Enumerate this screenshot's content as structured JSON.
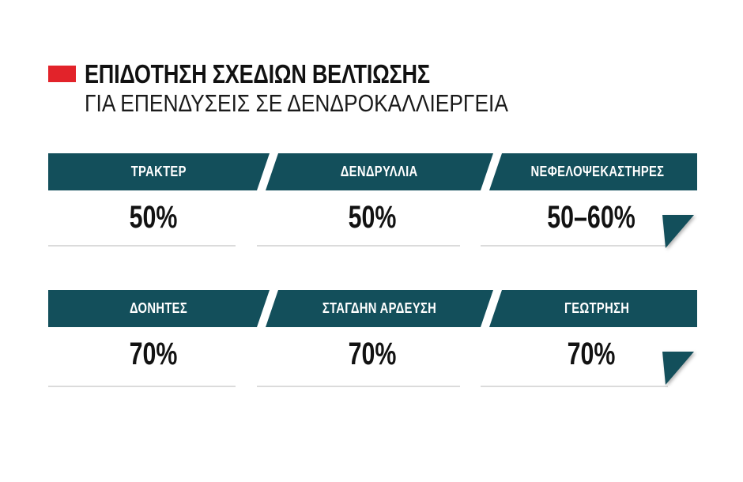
{
  "header": {
    "title": "ΕΠΙΔΟΤΗΣΗ ΣΧΕΔΙΩΝ ΒΕΛΤΙΩΣΗΣ",
    "subtitle": "ΓΙΑ ΕΠΕΝΔΥΣΕΙΣ ΣΕ ΔΕΝΔΡΟΚΑΛΛΙΕΡΓΕΙΑ"
  },
  "rows": [
    {
      "cells": [
        {
          "label": "ΤΡΑΚΤΕΡ",
          "value": "50%"
        },
        {
          "label": "ΔΕΝΔΡΥΛΛΙΑ",
          "value": "50%"
        },
        {
          "label": "ΝΕΦΕΛΟΨΕΚΑΣΤΗΡΕΣ",
          "value": "50–60%"
        }
      ]
    },
    {
      "cells": [
        {
          "label": "ΔΟΝΗΤΕΣ",
          "value": "70%"
        },
        {
          "label": "ΣΤΑΓΔΗΝ ΑΡΔΕΥΣΗ",
          "value": "70%"
        },
        {
          "label": "ΓΕΩΤΡΗΣΗ",
          "value": "70%"
        }
      ]
    }
  ],
  "colors": {
    "teal": "#134f5b",
    "red": "#e2232a",
    "underline": "#dbdbdb",
    "text": "#121212"
  },
  "chart_data": {
    "type": "table",
    "title": "ΕΠΙΔΟΤΗΣΗ ΣΧΕΔΙΩΝ ΒΕΛΤΙΩΣΗΣ",
    "subtitle": "ΓΙΑ ΕΠΕΝΔΥΣΕΙΣ ΣΕ ΔΕΝΔΡΟΚΑΛΛΙΕΡΓΕΙΑ",
    "categories": [
      "ΤΡΑΚΤΕΡ",
      "ΔΕΝΔΡΥΛΛΙΑ",
      "ΝΕΦΕΛΟΨΕΚΑΣΤΗΡΕΣ",
      "ΔΟΝΗΤΕΣ",
      "ΣΤΑΓΔΗΝ ΑΡΔΕΥΣΗ",
      "ΓΕΩΤΡΗΣΗ"
    ],
    "values": [
      "50%",
      "50%",
      "50–60%",
      "70%",
      "70%",
      "70%"
    ],
    "layout": {
      "rows": 2,
      "columns": 3
    }
  }
}
